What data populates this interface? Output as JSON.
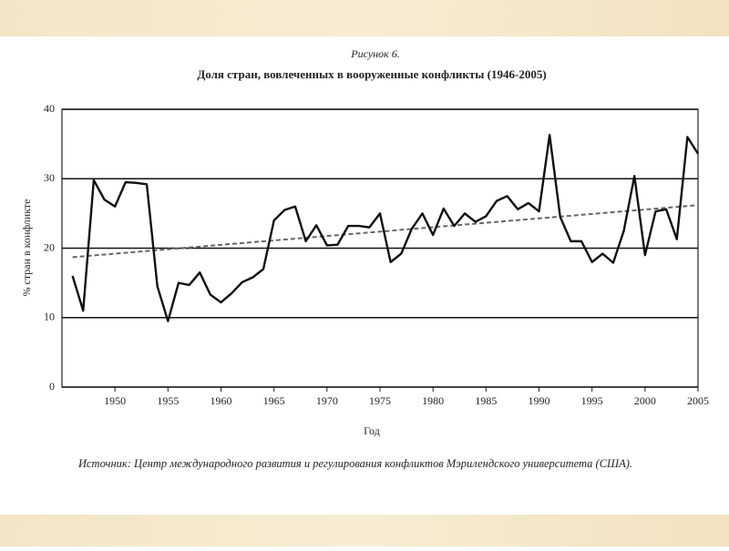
{
  "chart_data": {
    "type": "line",
    "figure_label": "Рисунок 6.",
    "title": "Доля стран, вовлеченных в вооруженные конфликты (1946-2005)",
    "x_label": "Год",
    "y_label": "% стран в конфликте",
    "source": "Источник: Центр международного развития и регулирования конфликтов Мэрилендского университета (США).",
    "x": [
      1946,
      1947,
      1948,
      1949,
      1950,
      1951,
      1952,
      1953,
      1954,
      1955,
      1956,
      1957,
      1958,
      1959,
      1960,
      1961,
      1962,
      1963,
      1964,
      1965,
      1966,
      1967,
      1968,
      1969,
      1970,
      1971,
      1972,
      1973,
      1974,
      1975,
      1976,
      1977,
      1978,
      1979,
      1980,
      1981,
      1982,
      1983,
      1984,
      1985,
      1986,
      1987,
      1988,
      1989,
      1990,
      1991,
      1992,
      1993,
      1994,
      1995,
      1996,
      1997,
      1998,
      1999,
      2000,
      2001,
      2002,
      2003,
      2004,
      2005
    ],
    "series": [
      {
        "color": "#111111",
        "values": [
          16,
          11,
          29.8,
          27,
          26,
          29.5,
          29.4,
          29.2,
          14.5,
          9.5,
          15,
          14.7,
          16.5,
          13.3,
          12.2,
          13.5,
          15.1,
          15.8,
          17,
          24,
          25.5,
          26,
          21,
          23.3,
          20.4,
          20.5,
          23.2,
          23.2,
          23,
          25,
          18,
          19.2,
          22.8,
          25,
          21.9,
          25.7,
          23.2,
          25,
          23.8,
          24.6,
          26.8,
          27.5,
          25.6,
          26.5,
          25.3,
          36.3,
          24.5,
          21,
          21,
          18,
          19.2,
          17.9,
          22.5,
          30.4,
          19,
          25.3,
          25.6,
          21.3,
          36,
          33.6
        ]
      }
    ],
    "trend": {
      "color": "#666666",
      "x": [
        1946,
        2005
      ],
      "values": [
        18.7,
        26.2
      ]
    },
    "xlim": [
      1945,
      2005
    ],
    "xticks": [
      1950,
      1955,
      1960,
      1965,
      1970,
      1975,
      1980,
      1985,
      1990,
      1995,
      2000,
      2005
    ],
    "ylim": [
      0,
      40
    ],
    "yticks": [
      0,
      10,
      20,
      30,
      40
    ],
    "grid": true
  }
}
